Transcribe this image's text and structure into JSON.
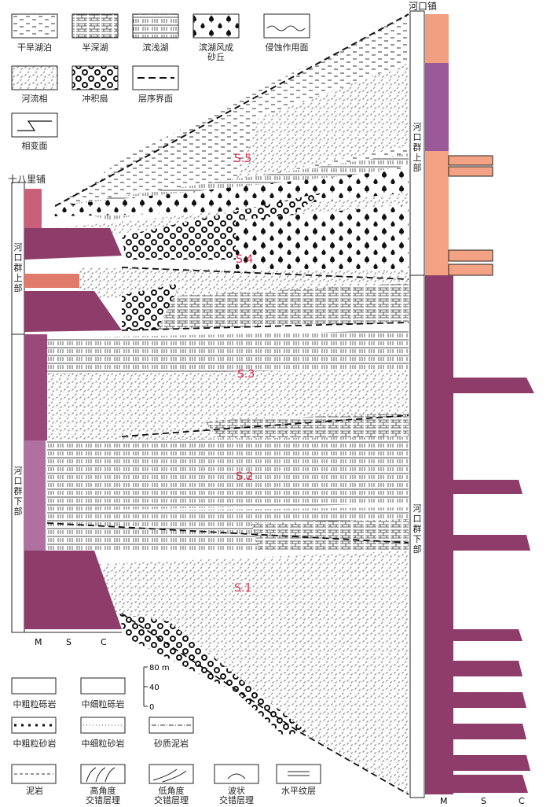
{
  "legend_top": {
    "items": [
      {
        "label": "干旱湖泊",
        "pattern": "dry-lake"
      },
      {
        "label": "半深湖",
        "pattern": "semi-deep-lake"
      },
      {
        "label": "滨浅湖",
        "pattern": "shore-shallow-lake"
      },
      {
        "label": "滨湖风成",
        "label2": "砂丘",
        "pattern": "eolian-dune"
      },
      {
        "label": "侵蚀作用面",
        "pattern": "erosion-surface"
      },
      {
        "label": "河流相",
        "pattern": "fluvial"
      },
      {
        "label": "冲积扇",
        "pattern": "alluvial-fan"
      },
      {
        "label": "层序界面",
        "pattern": "sequence-boundary"
      },
      {
        "label": "相变面",
        "pattern": "facies-change"
      }
    ]
  },
  "legend_bottom": {
    "items": [
      {
        "label": "中粗粒砾岩"
      },
      {
        "label": "中细粒砾岩"
      },
      {
        "label": "中粗粒砂岩"
      },
      {
        "label": "中细粒砂岩"
      },
      {
        "label": "砂质泥岩"
      },
      {
        "label": "泥岩"
      },
      {
        "label": "高角度",
        "label2": "交错层理"
      },
      {
        "label": "低角度",
        "label2": "交错层理"
      },
      {
        "label": "波状",
        "label2": "交错层理"
      },
      {
        "label": "水平纹层"
      }
    ]
  },
  "scale_bar": {
    "ticks": [
      "80 m",
      "40",
      "0"
    ]
  },
  "left_section": {
    "name": "十八里铺",
    "upper_unit": "河\n口\n群\n上\n部",
    "lower_unit": "河\n口\n群\n下\n部",
    "axis": [
      "M",
      "S",
      "C"
    ]
  },
  "right_section": {
    "name": "河口镇",
    "upper_unit": "河\n口\n群\n上\n部",
    "lower_unit": "河\n口\n群\n下\n部",
    "axis": [
      "M",
      "S",
      "C"
    ]
  },
  "sequences": [
    "S.5",
    "S.4",
    "S.3",
    "S.2",
    "S.1"
  ],
  "colors": {
    "sequence_label": "#e0284a",
    "mudstone_dark": "#8e3c6a",
    "mudstone_light": "#c98cb0",
    "purple_upper": "#9a5a9a",
    "salmon": "#f0a080"
  }
}
